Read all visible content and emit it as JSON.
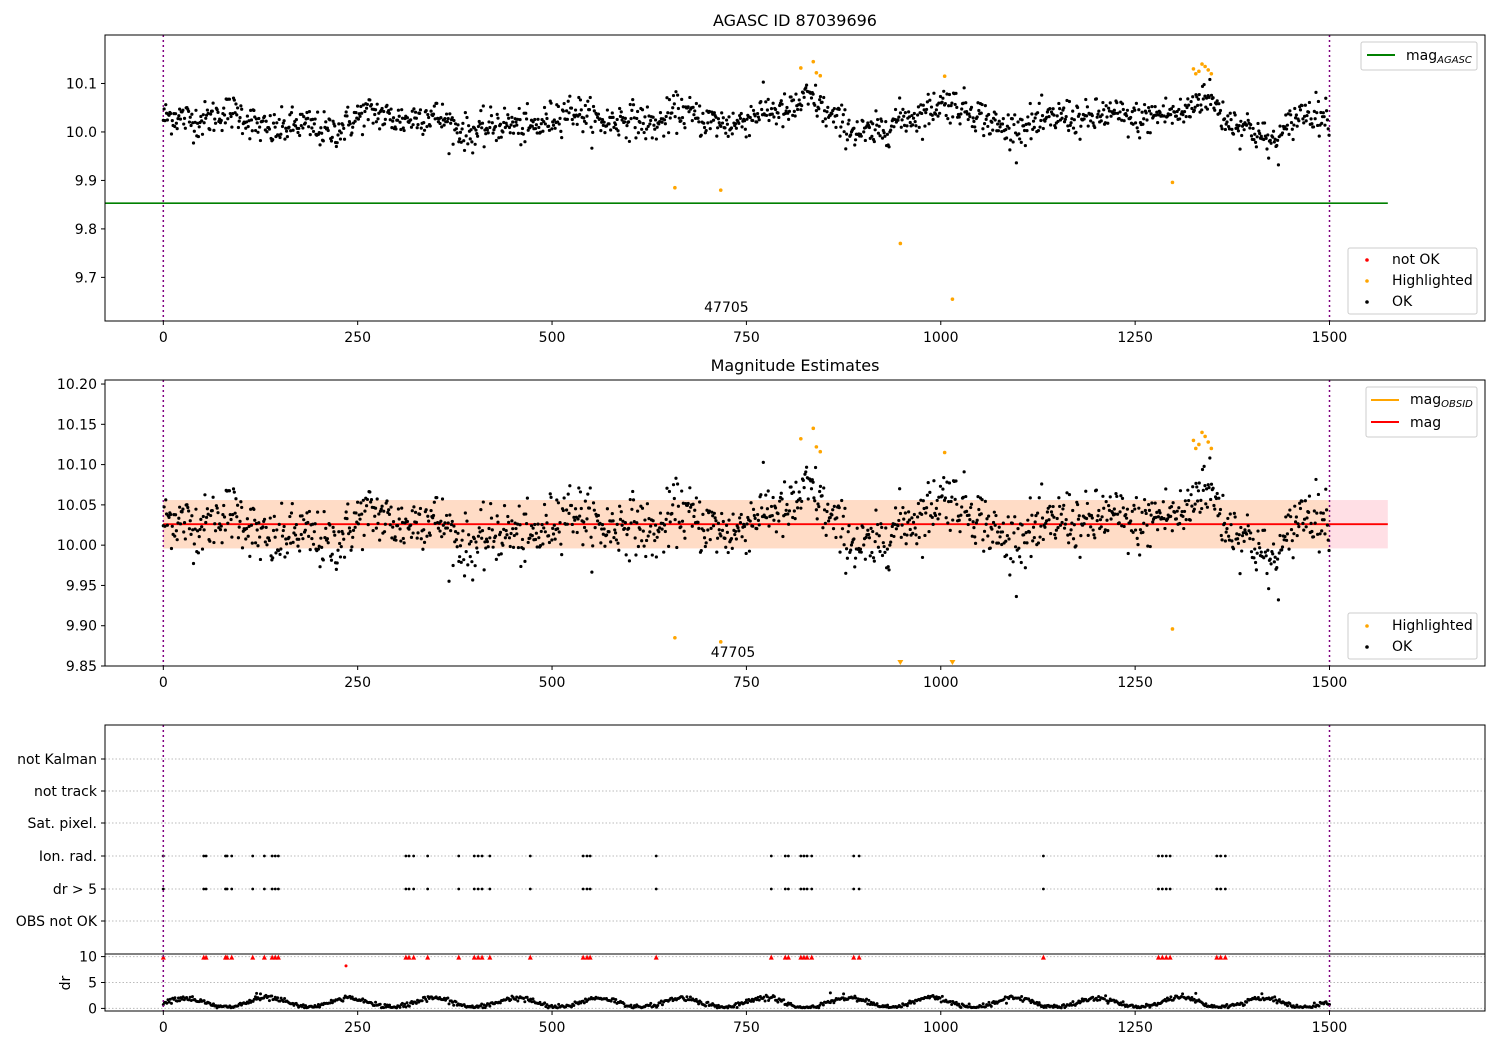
{
  "chart_data": [
    {
      "type": "scatter",
      "title": "AGASC ID 87039696",
      "xlim": [
        -75,
        1700
      ],
      "ylim": [
        9.61,
        10.2
      ],
      "xticks": [
        0,
        250,
        500,
        750,
        1000,
        1250,
        1500
      ],
      "yticks": [
        9.7,
        9.8,
        9.9,
        10.0,
        10.1
      ],
      "ytick_labels": [
        "9.7",
        "9.8",
        "9.9",
        "10.0",
        "10.1"
      ],
      "obsid_label": "47705",
      "obsid_label_x": 750,
      "obs_boundaries": [
        0,
        1500
      ],
      "mag_agasc": 9.853,
      "trend": {
        "base": 10.02,
        "amplitude": 0.025,
        "bumps": [
          [
            660,
            0.045
          ],
          [
            830,
            0.055
          ],
          [
            1000,
            0.035
          ],
          [
            1160,
            0.035
          ],
          [
            1340,
            0.075
          ],
          [
            1430,
            -0.03
          ]
        ],
        "scatter": 0.018
      },
      "highlighted": [
        {
          "x": 658,
          "y": 9.885
        },
        {
          "x": 717,
          "y": 9.88
        },
        {
          "x": 820,
          "y": 10.132
        },
        {
          "x": 836,
          "y": 10.145
        },
        {
          "x": 840,
          "y": 10.122
        },
        {
          "x": 845,
          "y": 10.116
        },
        {
          "x": 948,
          "y": 9.77
        },
        {
          "x": 1005,
          "y": 10.115
        },
        {
          "x": 1015,
          "y": 9.655
        },
        {
          "x": 1298,
          "y": 9.896
        },
        {
          "x": 1325,
          "y": 10.13
        },
        {
          "x": 1328,
          "y": 10.12
        },
        {
          "x": 1332,
          "y": 10.125
        },
        {
          "x": 1336,
          "y": 10.14
        },
        {
          "x": 1340,
          "y": 10.135
        },
        {
          "x": 1344,
          "y": 10.128
        },
        {
          "x": 1348,
          "y": 10.12
        }
      ],
      "legend_top": [
        "mag",
        "AGASC"
      ],
      "legend_bottom": [
        "not OK",
        "Highlighted",
        "OK"
      ],
      "colors": {
        "ok": "#000000",
        "highlighted": "#ffa500",
        "not_ok": "#ff0000",
        "agasc_line": "#008000",
        "obs_line": "#800080"
      }
    },
    {
      "type": "scatter",
      "title": "Magnitude Estimates",
      "xlim": [
        -75,
        1700
      ],
      "ylim": [
        9.85,
        10.205
      ],
      "xticks": [
        0,
        250,
        500,
        750,
        1000,
        1250,
        1500
      ],
      "yticks": [
        9.85,
        9.9,
        9.95,
        10.0,
        10.05,
        10.1,
        10.15,
        10.2
      ],
      "ytick_labels": [
        "9.85",
        "9.90",
        "9.95",
        "10.00",
        "10.05",
        "10.10",
        "10.15",
        "10.20"
      ],
      "obsid_label": "47705",
      "obsid_label_x": 750,
      "obs_boundaries": [
        0,
        1500
      ],
      "mag": 10.026,
      "mag_band": [
        9.996,
        10.056
      ],
      "mag_obsid": 10.026,
      "mag_obsid_band": [
        9.996,
        10.056
      ],
      "trend": {
        "base": 10.02,
        "amplitude": 0.025,
        "bumps": [
          [
            660,
            0.045
          ],
          [
            830,
            0.055
          ],
          [
            1000,
            0.035
          ],
          [
            1160,
            0.035
          ],
          [
            1340,
            0.075
          ],
          [
            1430,
            -0.03
          ]
        ],
        "scatter": 0.018
      },
      "highlighted": [
        {
          "x": 658,
          "y": 9.885
        },
        {
          "x": 717,
          "y": 9.88
        },
        {
          "x": 820,
          "y": 10.132
        },
        {
          "x": 836,
          "y": 10.145
        },
        {
          "x": 840,
          "y": 10.122
        },
        {
          "x": 845,
          "y": 10.116
        },
        {
          "x": 1005,
          "y": 10.115
        },
        {
          "x": 1298,
          "y": 9.896
        },
        {
          "x": 1325,
          "y": 10.13
        },
        {
          "x": 1328,
          "y": 10.12
        },
        {
          "x": 1332,
          "y": 10.125
        },
        {
          "x": 1336,
          "y": 10.14
        },
        {
          "x": 1340,
          "y": 10.135
        },
        {
          "x": 1344,
          "y": 10.128
        },
        {
          "x": 1348,
          "y": 10.12
        }
      ],
      "clipped_low": [
        948,
        1015
      ],
      "legend_top": [
        [
          "mag",
          "OBSID"
        ],
        [
          "mag",
          ""
        ]
      ],
      "legend_bottom": [
        "Highlighted",
        "OK"
      ],
      "colors": {
        "ok": "#000000",
        "highlighted": "#ffa500",
        "mag_line": "#ff0000",
        "mag_band": "#ffc0cb",
        "obsid_line": "#ffa500",
        "obsid_band": "#ffdab9",
        "obs_line": "#800080"
      }
    },
    {
      "type": "scatter",
      "title": "",
      "xlim": [
        -75,
        1700
      ],
      "xticks": [
        0,
        250,
        500,
        750,
        1000,
        1250,
        1500
      ],
      "obs_boundaries": [
        0,
        1500
      ],
      "flag_rows": [
        "not Kalman",
        "not track",
        "Sat. pixel.",
        "Ion. rad.",
        "dr > 5",
        "OBS not OK"
      ],
      "flag_times": [
        0,
        52,
        55,
        80,
        82,
        88,
        115,
        130,
        140,
        144,
        148,
        312,
        316,
        322,
        340,
        380,
        400,
        405,
        410,
        420,
        472,
        540,
        545,
        549,
        634,
        782,
        800,
        804,
        820,
        824,
        828,
        834,
        888,
        895,
        1132,
        1280,
        1285,
        1290,
        1295,
        1355,
        1360,
        1366
      ],
      "dr_ylim": [
        -0.5,
        10.5
      ],
      "dr_yticks": [
        0,
        5,
        10
      ],
      "dr_ylabel": "dr",
      "dr_high_times": [
        0,
        52,
        55,
        80,
        82,
        88,
        115,
        130,
        140,
        144,
        148,
        312,
        316,
        322,
        340,
        380,
        400,
        405,
        410,
        420,
        472,
        540,
        545,
        549,
        634,
        782,
        800,
        804,
        820,
        824,
        828,
        834,
        888,
        895,
        1132,
        1280,
        1285,
        1290,
        1295,
        1355,
        1360,
        1366
      ],
      "dr_high_value": 9.8,
      "dr_extra": [
        {
          "x": 235,
          "y": 8.2
        },
        {
          "x": 120,
          "y": 2.9
        },
        {
          "x": 125,
          "y": 2.8
        },
        {
          "x": 858,
          "y": 3.0
        },
        {
          "x": 875,
          "y": 2.8
        },
        {
          "x": 1328,
          "y": 2.9
        }
      ],
      "colors": {
        "flag": "#000000",
        "dr": "#000000",
        "dr_high": "#ff0000",
        "obs_line": "#800080",
        "grid": "#bbbbbb"
      }
    }
  ]
}
